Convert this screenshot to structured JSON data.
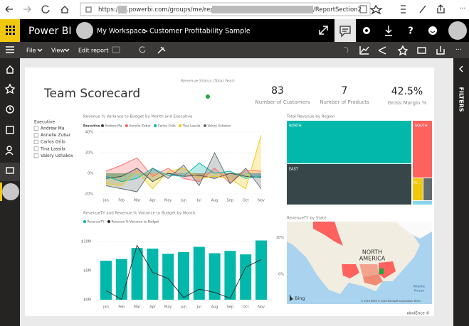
{
  "browser": {
    "url_prefix": "https://",
    "url_middle": ".powerbi.com/groups/me/reports/",
    "url_suffix": "/ReportSection2"
  },
  "header": {
    "app": "Power BI",
    "workspace": "My Workspace",
    "separator": ">",
    "report": "Customer Profitability Sample",
    "help": "?"
  },
  "toolbar": {
    "file": "File",
    "view": "View",
    "edit": "Edit report"
  },
  "filters_pane": {
    "label": "FILTERS"
  },
  "report": {
    "title": "Team Scorecard",
    "revenue_status": {
      "title": "Revenue Status (Total Year)"
    },
    "kpis": [
      {
        "value": "83",
        "label": "Number of Customers"
      },
      {
        "value": "7",
        "label": "Number of Products"
      },
      {
        "value": "42.5%",
        "label": "Gross Margin %"
      }
    ],
    "slicer": {
      "title": "Executive",
      "items": [
        "Andrew Ma",
        "Annelie Zubar",
        "Carlos Grilo",
        "Tina Lassila",
        "Valery Ushakov"
      ]
    },
    "treemap": {
      "title": "Total Revenue by Region",
      "regions": [
        "NORTH",
        "SOUTH",
        "EAST",
        "CE..."
      ]
    },
    "map": {
      "title": "RevenueTY by State",
      "continent": [
        "NORTH",
        "AMERICA"
      ],
      "ocean": [
        "Atlantic",
        "Ocean"
      ],
      "logo": "Bing",
      "copyright": "© 2018 HERE © 2018 Microsoft Corporation Terms"
    },
    "footer": "obviEnce ©"
  },
  "chart_data": [
    {
      "type": "area",
      "title": "Revenue % Variance to Budget by Month and Executive",
      "legend_title": "Executive",
      "categories": [
        "Jan",
        "Feb",
        "Mar",
        "Apr",
        "May",
        "Jun",
        "Jul",
        "Aug",
        "Sep",
        "Oct",
        "Nov"
      ],
      "ylim": [
        -20,
        40
      ],
      "yticks": [
        {
          "value": 40,
          "label": "40%"
        },
        {
          "value": 20,
          "label": "20%"
        },
        {
          "value": 0,
          "label": "0%"
        },
        {
          "value": -20,
          "label": "-20%"
        }
      ],
      "series": [
        {
          "name": "Andrew Ma",
          "color": "#374649",
          "values": [
            -5,
            -3,
            5,
            -8,
            0,
            -3,
            -2,
            -5,
            0,
            -3,
            -4
          ]
        },
        {
          "name": "Annelie Zubar",
          "color": "#fd625e",
          "values": [
            2,
            8,
            15,
            -3,
            5,
            -5,
            -8,
            5,
            -10,
            3,
            2
          ]
        },
        {
          "name": "Carlos Grilo",
          "color": "#01b8aa",
          "values": [
            -3,
            -8,
            -5,
            5,
            -2,
            -3,
            10,
            0,
            2,
            -5,
            -3
          ]
        },
        {
          "name": "Tina Lassila",
          "color": "#f2c80f",
          "values": [
            -10,
            -12,
            2,
            -15,
            2,
            5,
            -5,
            -3,
            -5,
            -15,
            37
          ]
        },
        {
          "name": "Valery Ushakov",
          "color": "#5f6b6d",
          "values": [
            -12,
            -15,
            -18,
            5,
            -5,
            8,
            -12,
            20,
            -10,
            5,
            -15
          ]
        }
      ]
    },
    {
      "type": "bar-line",
      "title": "RevenueTY and Revenue % Variance to Budget by Month",
      "categories": [
        "Jan",
        "Feb",
        "Mar",
        "Apr",
        "May",
        "Jun",
        "Jul",
        "Aug",
        "Sep",
        "Oct",
        "Nov"
      ],
      "ylim": [
        0,
        11
      ],
      "yticks": [
        {
          "value": 0,
          "label": "$0M"
        },
        {
          "value": 5,
          "label": "$5M"
        },
        {
          "value": 10,
          "label": "$10M"
        }
      ],
      "y2lim": [
        -7,
        10.5
      ],
      "y2ticks": [
        {
          "value": 0,
          "label": "0%"
        },
        {
          "value": 10,
          "label": "10%"
        }
      ],
      "series": [
        {
          "name": "RevenueTY",
          "color": "#01b8aa",
          "values": [
            6.7,
            7.0,
            8.9,
            8.8,
            7.9,
            8.2,
            9.1,
            8.0,
            8.4,
            7.8,
            10.2
          ]
        },
        {
          "name": "Revenue % Variance to Budget",
          "color": "#252423",
          "axis": "y2",
          "values": [
            -4.5,
            -6.9,
            7.9,
            0.5,
            -1.2,
            -6.4,
            -4.1,
            -5.0,
            -6.6,
            1.9,
            4.0
          ]
        }
      ]
    }
  ]
}
